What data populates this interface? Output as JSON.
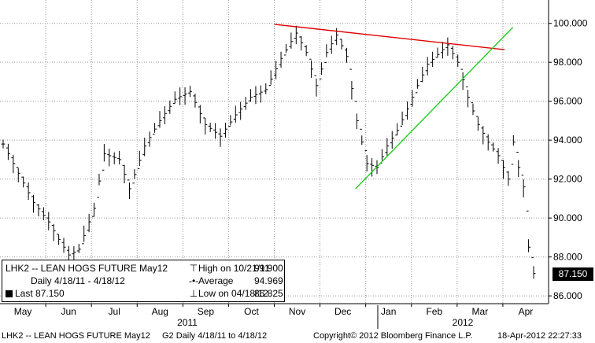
{
  "chart_data": {
    "type": "ohlc_bar",
    "title": "LHK2 -- LEAN HOGS FUTURE May12",
    "ticks_y": [
      "86.000",
      "88.000",
      "90.000",
      "92.000",
      "94.000",
      "96.000",
      "98.000",
      "100.000"
    ],
    "ylim": [
      85.6,
      101.2
    ],
    "x_labels": [
      "May",
      "Jun",
      "Jul",
      "Aug",
      "Sep",
      "Oct",
      "Nov",
      "Dec",
      "Jan",
      "Feb",
      "Mar",
      "Apr"
    ],
    "year_labels": [
      "2011",
      "2012"
    ],
    "last_value": 87.15,
    "high": 99.9,
    "average": 94.969,
    "low": 86.825,
    "series_keypoints": [
      [
        0,
        93.8
      ],
      [
        3,
        92.3
      ],
      [
        6,
        90.8
      ],
      [
        9,
        89.8
      ],
      [
        11,
        88.9
      ],
      [
        13,
        88.1
      ],
      [
        15,
        88.4
      ],
      [
        18,
        90.5
      ],
      [
        20,
        93.3
      ],
      [
        23,
        93.0
      ],
      [
        25,
        91.5
      ],
      [
        28,
        93.7
      ],
      [
        31,
        95.0
      ],
      [
        34,
        96.1
      ],
      [
        37,
        96.5
      ],
      [
        40,
        94.8
      ],
      [
        43,
        94.2
      ],
      [
        46,
        95.3
      ],
      [
        49,
        96.2
      ],
      [
        52,
        96.6
      ],
      [
        55,
        98.2
      ],
      [
        58,
        99.5
      ],
      [
        60,
        98.5
      ],
      [
        62,
        96.8
      ],
      [
        64,
        98.5
      ],
      [
        66,
        99.4
      ],
      [
        68,
        98.3
      ],
      [
        70,
        95.0
      ],
      [
        72,
        92.8
      ],
      [
        74,
        92.6
      ],
      [
        76,
        93.7
      ],
      [
        78,
        94.5
      ],
      [
        80,
        95.6
      ],
      [
        82,
        96.8
      ],
      [
        84,
        97.9
      ],
      [
        86,
        98.4
      ],
      [
        88,
        98.9
      ],
      [
        90,
        98.0
      ],
      [
        92,
        96.2
      ],
      [
        94,
        94.8
      ],
      [
        96,
        93.9
      ],
      [
        98,
        93.2
      ],
      [
        100,
        92.0
      ],
      [
        101,
        93.9
      ],
      [
        102,
        92.6
      ],
      [
        103,
        91.6
      ],
      [
        104,
        88.5
      ],
      [
        105,
        87.15
      ]
    ],
    "annotations": [
      {
        "type": "trendline",
        "color": "#e00000",
        "from": [
          0.5,
          99.95
        ],
        "to": [
          0.92,
          98.65
        ]
      },
      {
        "type": "trendline",
        "color": "#22cc22",
        "from": [
          0.648,
          91.5
        ],
        "to": [
          0.935,
          99.8
        ]
      }
    ]
  },
  "legend": {
    "title": "LHK2 -- LEAN HOGS FUTURE  May12",
    "range": "Daily 4/18/11 - 4/18/12",
    "last": "Last 87.150",
    "high_label": "High on 10/21/11",
    "high_value": "99.900",
    "avg_label": "Average",
    "avg_value": "94.969",
    "low_label": "Low on 04/18/12",
    "low_value": "86.825"
  },
  "footer": {
    "left": "LHK2 -- LEAN HOGS FUTURE  May12",
    "mid": "G2  Daily  4/18/11 to 4/18/12",
    "copyright": "Copyright© 2012 Bloomberg Finance L.P.",
    "datetime": "18-Apr-2012 22:27:33"
  },
  "colors": {
    "price_bars": "#000000",
    "red_trendline": "#e00000",
    "green_trendline": "#22cc22",
    "grid": "#9a9a9a"
  }
}
